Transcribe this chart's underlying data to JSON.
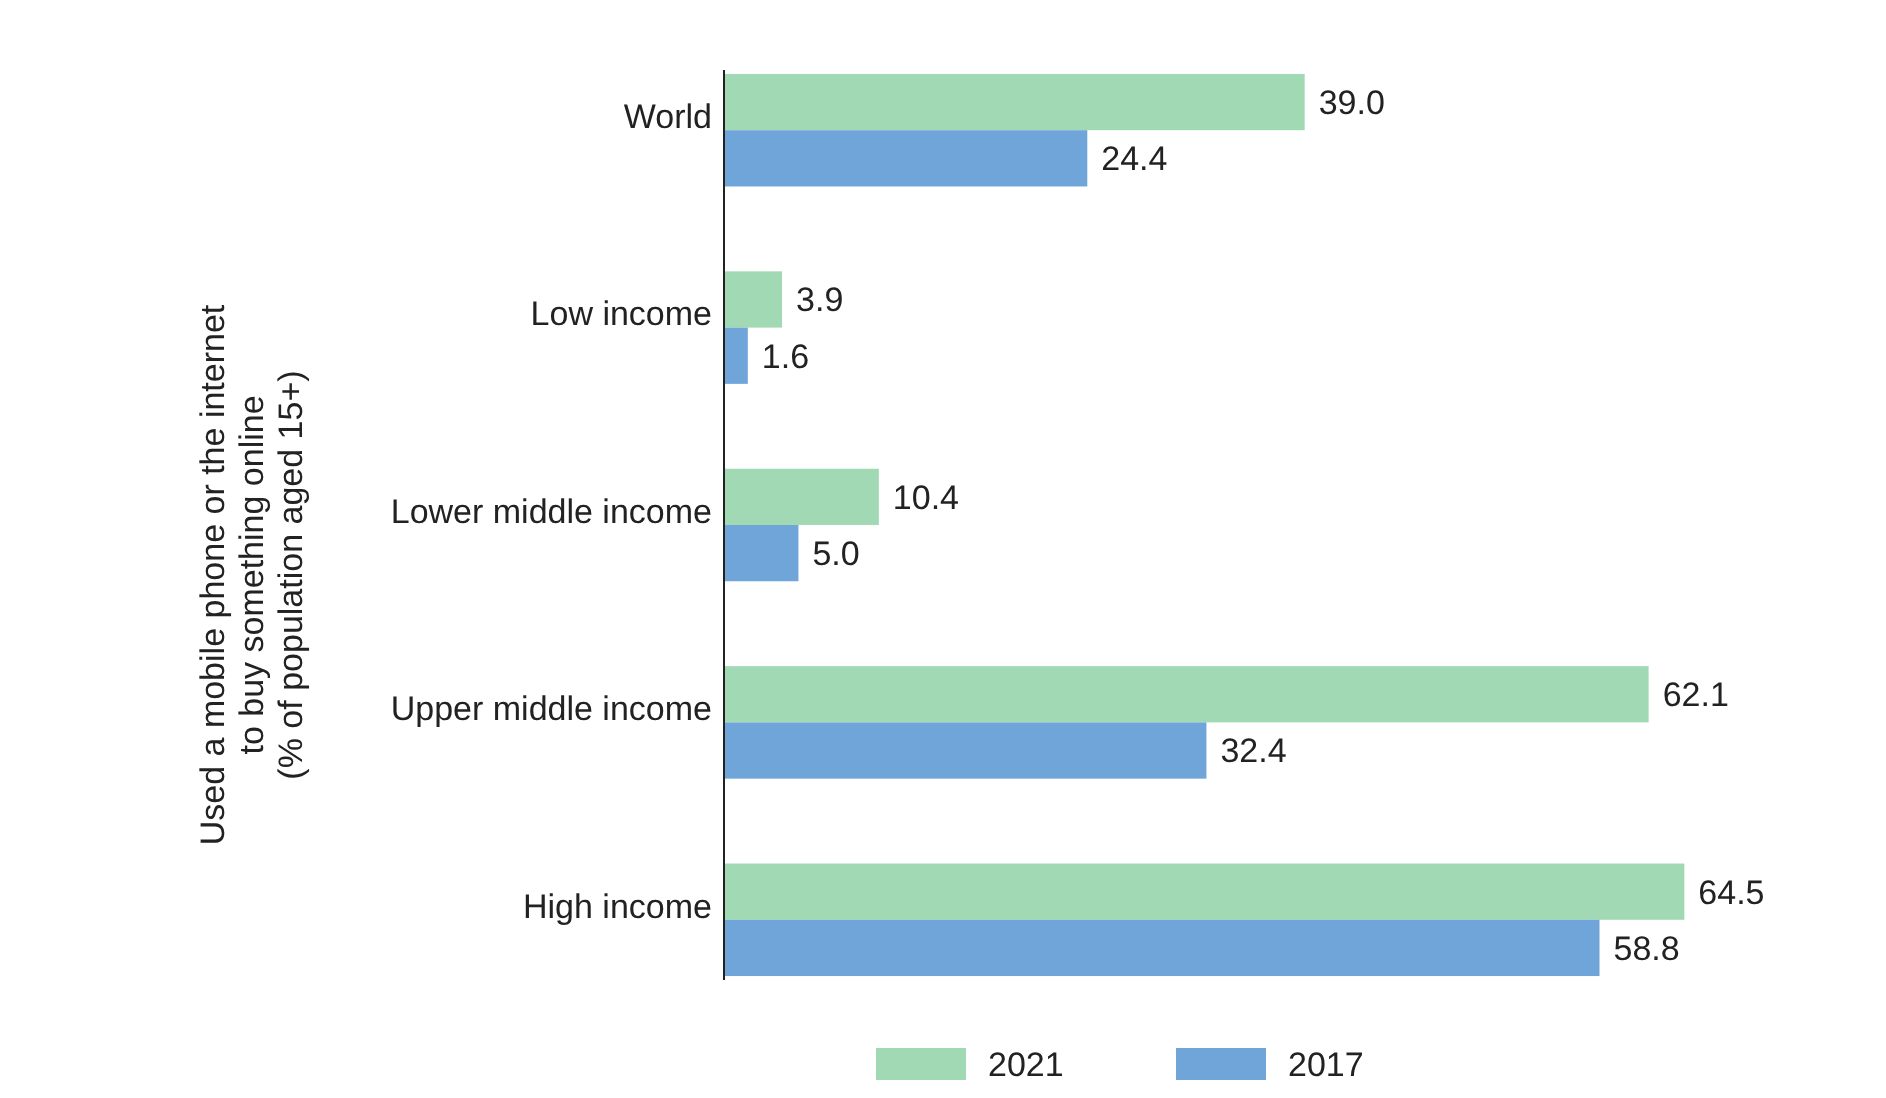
{
  "chart_data": {
    "type": "bar",
    "orientation": "horizontal",
    "ylabel": "Used a mobile phone or the internet\nto buy something online\n(% of population aged 15+)",
    "categories": [
      "World",
      "Low income",
      "Lower middle income",
      "Upper middle income",
      "High income"
    ],
    "series": [
      {
        "name": "2021",
        "color": "#a1d9b4",
        "values": [
          39.0,
          3.9,
          10.4,
          62.1,
          64.5
        ],
        "value_labels": [
          "39.0",
          "3.9",
          "10.4",
          "62.1",
          "64.5"
        ]
      },
      {
        "name": "2017",
        "color": "#70a5da",
        "values": [
          24.4,
          1.6,
          5.0,
          32.4,
          58.8
        ],
        "value_labels": [
          "24.4",
          "1.6",
          "5.0",
          "32.4",
          "58.8"
        ]
      }
    ],
    "legend": "bottom"
  }
}
